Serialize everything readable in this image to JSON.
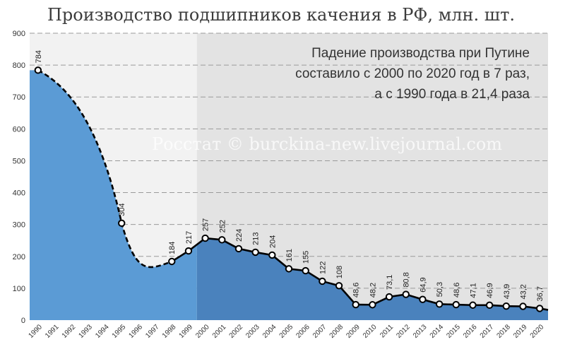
{
  "chart_data": {
    "type": "area",
    "title": "Производство подшипников качения в РФ, млн. шт.",
    "annotation": [
      "Падение производства при Путине",
      "составило с 2000 по 2020 год в 7 раз,",
      "а с 1990 года в 21,4 раза"
    ],
    "watermark": "Росстат © burckina-new.livejournal.com",
    "ylim": [
      0,
      900
    ],
    "yticks": [
      "0",
      "100",
      "200",
      "300",
      "400",
      "500",
      "600",
      "700",
      "800",
      "900"
    ],
    "categories": [
      "1990",
      "1991",
      "1992",
      "1993",
      "1994",
      "1995",
      "1996",
      "1997",
      "1998",
      "1999",
      "2000",
      "2001",
      "2002",
      "2003",
      "2004",
      "2005",
      "2006",
      "2007",
      "2008",
      "2009",
      "2010",
      "2011",
      "2012",
      "2013",
      "2014",
      "2015",
      "2016",
      "2017",
      "2018",
      "2019",
      "2020"
    ],
    "points": [
      {
        "x": "1990",
        "y": 784,
        "label": "784"
      },
      {
        "x": "1995",
        "y": 304,
        "label": "304"
      },
      {
        "x": "1998",
        "y": 184,
        "label": "184"
      },
      {
        "x": "1999",
        "y": 217,
        "label": "217"
      },
      {
        "x": "2000",
        "y": 257,
        "label": "257"
      },
      {
        "x": "2001",
        "y": 252,
        "label": "252"
      },
      {
        "x": "2002",
        "y": 224,
        "label": "224"
      },
      {
        "x": "2003",
        "y": 213,
        "label": "213"
      },
      {
        "x": "2004",
        "y": 204,
        "label": "204"
      },
      {
        "x": "2005",
        "y": 161,
        "label": "161"
      },
      {
        "x": "2006",
        "y": 155,
        "label": "155"
      },
      {
        "x": "2007",
        "y": 122,
        "label": "122"
      },
      {
        "x": "2008",
        "y": 108,
        "label": "108"
      },
      {
        "x": "2009",
        "y": 48.6,
        "label": "48,6"
      },
      {
        "x": "2010",
        "y": 48.2,
        "label": "48,2"
      },
      {
        "x": "2011",
        "y": 73.1,
        "label": "73,1"
      },
      {
        "x": "2012",
        "y": 80.8,
        "label": "80,8"
      },
      {
        "x": "2013",
        "y": 64.9,
        "label": "64,9"
      },
      {
        "x": "2014",
        "y": 50.3,
        "label": "50,3"
      },
      {
        "x": "2015",
        "y": 48.6,
        "label": "48,6"
      },
      {
        "x": "2016",
        "y": 47.1,
        "label": "47,1"
      },
      {
        "x": "2017",
        "y": 46.9,
        "label": "46,9"
      },
      {
        "x": "2018",
        "y": 43.9,
        "label": "43,9"
      },
      {
        "x": "2019",
        "y": 43.2,
        "label": "43,2"
      },
      {
        "x": "2020",
        "y": 36.7,
        "label": "36,7"
      }
    ],
    "interpolated_segments": [
      [
        "1990",
        "1995"
      ],
      [
        "1995",
        "1998"
      ]
    ],
    "shaded_period": [
      "2000",
      "2020"
    ],
    "grid": "dashed horizontal",
    "colors": {
      "area_before": "#5b9bd5",
      "area_after": "#4a82bd",
      "background_before": "#f2f2f2",
      "background_after": "#e3e3e3",
      "line": "#000000"
    }
  }
}
